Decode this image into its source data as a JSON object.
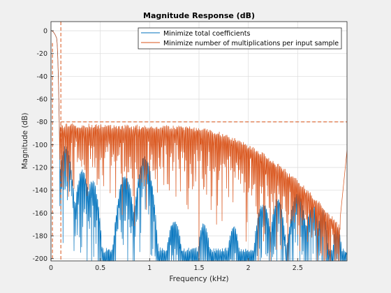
{
  "chart_data": {
    "type": "line",
    "title": "Magnitude Response (dB)",
    "xlabel": "Frequency (kHz)",
    "ylabel": "Magnitude (dB)",
    "xlim": [
      0,
      3.0
    ],
    "ylim": [
      -202,
      8
    ],
    "x_ticks": [
      0,
      0.5,
      1,
      1.5,
      2,
      2.5
    ],
    "x_tick_labels": [
      "0",
      "0.5",
      "1",
      "1.5",
      "2",
      "2.5"
    ],
    "y_ticks": [
      0,
      -20,
      -40,
      -60,
      -80,
      -100,
      -120,
      -140,
      -160,
      -180,
      -200
    ],
    "y_tick_labels": [
      "0",
      "-20",
      "-40",
      "-60",
      "-80",
      "-100",
      "-120",
      "-140",
      "-160",
      "-180",
      "-200"
    ],
    "grid": true,
    "legend_position": "top-right",
    "colors": {
      "series1": "#0072bd",
      "series2": "#d95319",
      "background": "#ffffff",
      "figure": "#f0f0f0"
    },
    "mask": {
      "passband_edge_khz": 0.1,
      "passband_level_db": 0,
      "stopband_atten_db": -80
    },
    "series": [
      {
        "name": "Minimize total coefficients",
        "description_points": {
          "x": [
            0,
            0.05,
            0.09,
            0.1,
            0.15,
            0.3,
            0.5,
            0.75,
            1.0,
            1.25,
            1.5,
            1.75,
            2.0,
            2.25,
            2.5,
            2.75,
            2.95,
            3.0
          ],
          "y": [
            0,
            -10,
            -60,
            -95,
            -110,
            -145,
            -180,
            -130,
            -160,
            -185,
            -175,
            -190,
            -195,
            -150,
            -155,
            -175,
            -120,
            -110
          ]
        }
      },
      {
        "name": "Minimize number of multiplications per input sample",
        "description_points": {
          "x": [
            0,
            0.05,
            0.09,
            0.1,
            0.2,
            0.5,
            1.0,
            1.5,
            1.8,
            2.0,
            2.3,
            2.5,
            2.7,
            2.85,
            2.9,
            2.95,
            3.0
          ],
          "y": [
            0,
            -10,
            -60,
            -80,
            -80,
            -81,
            -82,
            -85,
            -90,
            -95,
            -108,
            -120,
            -140,
            -165,
            -195,
            -125,
            -108
          ]
        }
      }
    ]
  }
}
